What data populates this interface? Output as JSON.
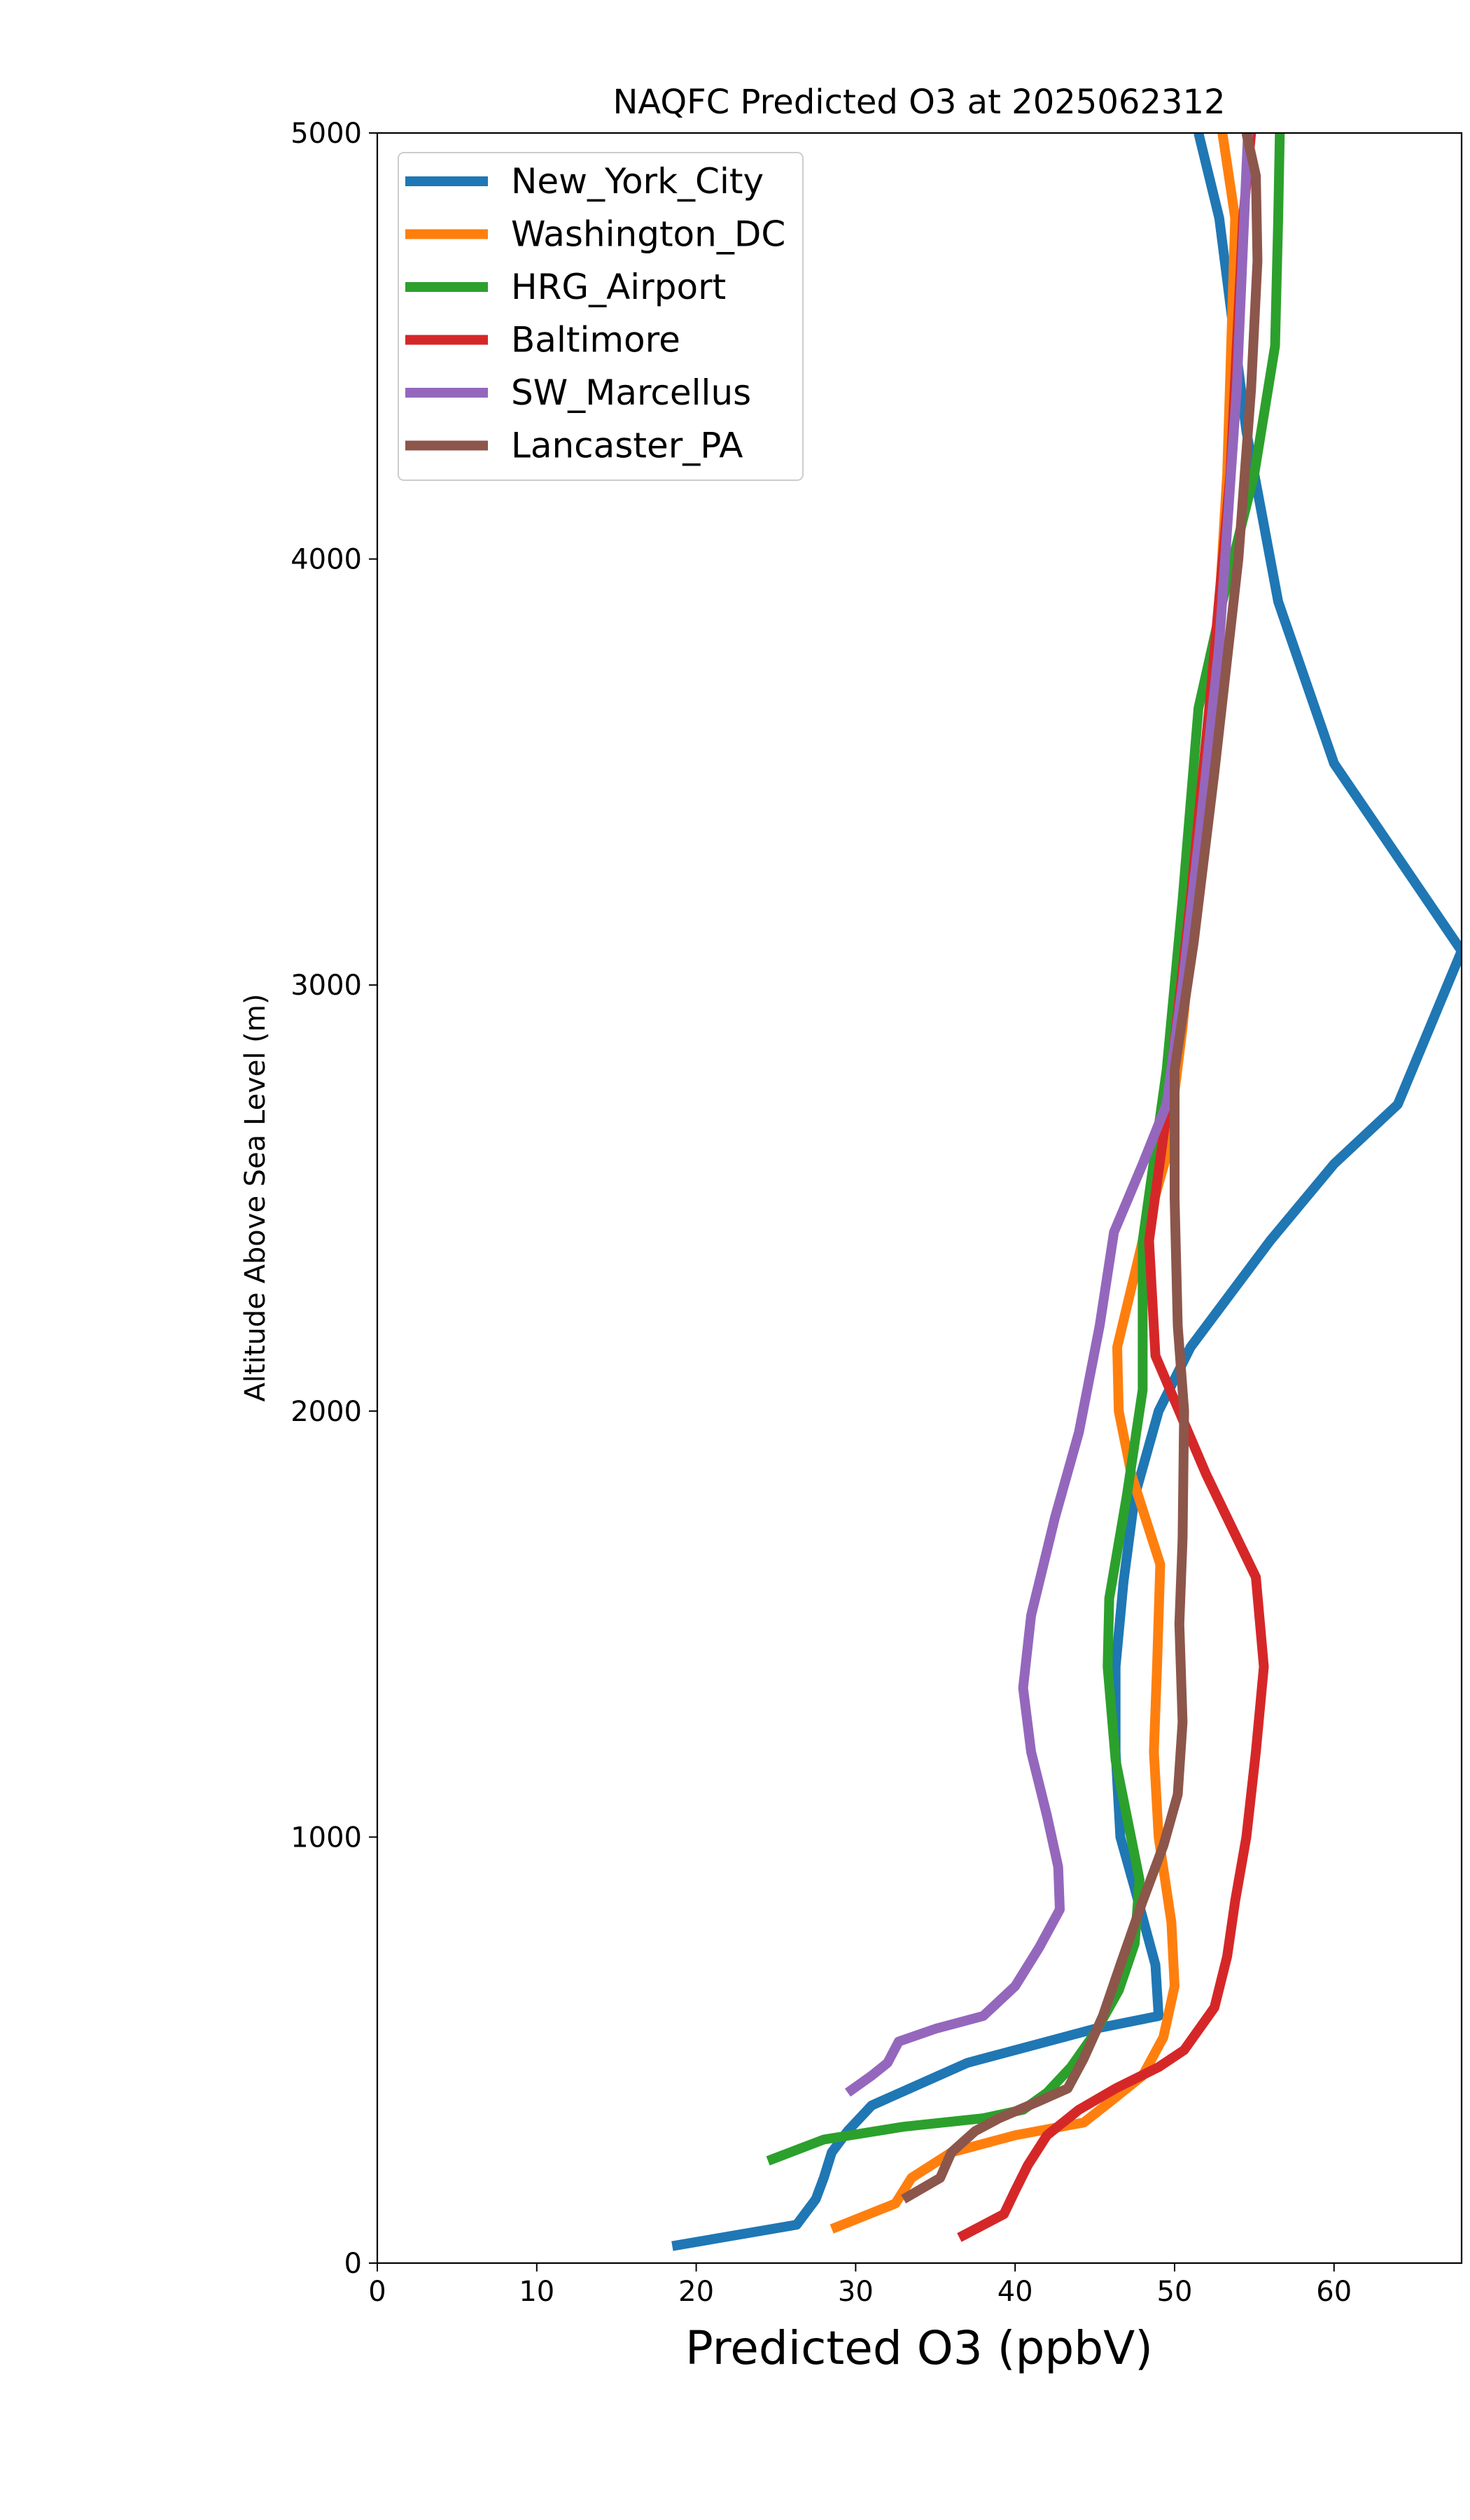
{
  "chart_data": {
    "type": "line",
    "title": "NAQFC Predicted O3 at 2025062312",
    "xlabel": "Predicted O3 (ppbV)",
    "ylabel": "Altitude Above Sea Level (m)",
    "xlim": [
      0,
      68
    ],
    "ylim": [
      0,
      5000
    ],
    "xticks": [
      0,
      10,
      20,
      30,
      40,
      50,
      60
    ],
    "yticks": [
      0,
      1000,
      2000,
      3000,
      4000,
      5000
    ],
    "grid": false,
    "legend_position": "top-left",
    "series": [
      {
        "name": "New_York_City",
        "color": "#1f77b4",
        "points": [
          [
            18.5,
            40
          ],
          [
            26.3,
            90
          ],
          [
            27.5,
            150
          ],
          [
            28.0,
            200
          ],
          [
            28.5,
            260
          ],
          [
            29.5,
            310
          ],
          [
            31.0,
            370
          ],
          [
            34.0,
            420
          ],
          [
            37.0,
            470
          ],
          [
            41.0,
            510
          ],
          [
            45.0,
            550
          ],
          [
            49.0,
            580
          ],
          [
            48.8,
            700
          ],
          [
            47.5,
            880
          ],
          [
            46.6,
            1000
          ],
          [
            46.3,
            1200
          ],
          [
            46.3,
            1400
          ],
          [
            46.8,
            1600
          ],
          [
            47.5,
            1800
          ],
          [
            49.0,
            2000
          ],
          [
            51.0,
            2150
          ],
          [
            56.0,
            2400
          ],
          [
            60.0,
            2580
          ],
          [
            64.0,
            2720
          ],
          [
            68.0,
            3080
          ],
          [
            64.0,
            3300
          ],
          [
            60.0,
            3520
          ],
          [
            56.5,
            3900
          ],
          [
            54.5,
            4300
          ],
          [
            52.8,
            4800
          ],
          [
            51.5,
            5000
          ]
        ]
      },
      {
        "name": "Washington_DC",
        "color": "#ff7f0e",
        "points": [
          [
            28.5,
            80
          ],
          [
            32.5,
            140
          ],
          [
            33.5,
            200
          ],
          [
            36.0,
            260
          ],
          [
            40.0,
            300
          ],
          [
            44.3,
            330
          ],
          [
            46.0,
            380
          ],
          [
            48.0,
            440
          ],
          [
            49.3,
            530
          ],
          [
            50.0,
            650
          ],
          [
            49.8,
            800
          ],
          [
            49.0,
            1000
          ],
          [
            48.7,
            1200
          ],
          [
            48.9,
            1400
          ],
          [
            49.1,
            1640
          ],
          [
            47.3,
            1850
          ],
          [
            46.5,
            2000
          ],
          [
            46.4,
            2150
          ],
          [
            48.0,
            2400
          ],
          [
            49.5,
            2600
          ],
          [
            50.5,
            2900
          ],
          [
            51.5,
            3300
          ],
          [
            52.5,
            3700
          ],
          [
            53.3,
            4200
          ],
          [
            53.8,
            4800
          ],
          [
            53.0,
            5000
          ]
        ]
      },
      {
        "name": "HRG_Airport",
        "color": "#2ca02c",
        "points": [
          [
            24.5,
            240
          ],
          [
            28.0,
            290
          ],
          [
            33.0,
            320
          ],
          [
            38.0,
            340
          ],
          [
            40.5,
            360
          ],
          [
            42.0,
            400
          ],
          [
            43.5,
            460
          ],
          [
            45.0,
            540
          ],
          [
            46.5,
            640
          ],
          [
            47.5,
            750
          ],
          [
            47.8,
            900
          ],
          [
            46.3,
            1180
          ],
          [
            45.8,
            1400
          ],
          [
            45.9,
            1560
          ],
          [
            47.0,
            1800
          ],
          [
            48.0,
            2050
          ],
          [
            48.0,
            2400
          ],
          [
            49.5,
            2800
          ],
          [
            50.5,
            3200
          ],
          [
            51.5,
            3650
          ],
          [
            53.0,
            3900
          ],
          [
            55.0,
            4200
          ],
          [
            56.3,
            4500
          ],
          [
            56.5,
            4800
          ],
          [
            56.6,
            5000
          ]
        ]
      },
      {
        "name": "Baltimore",
        "color": "#d62728",
        "points": [
          [
            36.5,
            60
          ],
          [
            39.3,
            115
          ],
          [
            40.0,
            170
          ],
          [
            40.8,
            230
          ],
          [
            42.0,
            300
          ],
          [
            44.0,
            360
          ],
          [
            46.3,
            410
          ],
          [
            49.0,
            460
          ],
          [
            50.6,
            500
          ],
          [
            52.5,
            600
          ],
          [
            53.3,
            720
          ],
          [
            53.8,
            850
          ],
          [
            54.5,
            1000
          ],
          [
            55.1,
            1200
          ],
          [
            55.6,
            1400
          ],
          [
            55.1,
            1610
          ],
          [
            52.0,
            1850
          ],
          [
            48.8,
            2130
          ],
          [
            48.4,
            2400
          ],
          [
            49.5,
            2700
          ],
          [
            51.0,
            3200
          ],
          [
            52.3,
            3700
          ],
          [
            53.5,
            4200
          ],
          [
            54.3,
            4800
          ],
          [
            54.8,
            5000
          ]
        ]
      },
      {
        "name": "SW_Marcellus",
        "color": "#9467bd",
        "points": [
          [
            29.5,
            400
          ],
          [
            31.0,
            440
          ],
          [
            32.0,
            470
          ],
          [
            32.7,
            520
          ],
          [
            35.0,
            550
          ],
          [
            38.0,
            580
          ],
          [
            40.0,
            650
          ],
          [
            41.5,
            740
          ],
          [
            42.8,
            830
          ],
          [
            42.7,
            930
          ],
          [
            42.0,
            1050
          ],
          [
            41.0,
            1200
          ],
          [
            40.5,
            1350
          ],
          [
            41.0,
            1520
          ],
          [
            42.5,
            1750
          ],
          [
            44.0,
            1950
          ],
          [
            45.3,
            2200
          ],
          [
            46.2,
            2420
          ],
          [
            48.0,
            2580
          ],
          [
            49.5,
            2720
          ],
          [
            50.5,
            3000
          ],
          [
            51.7,
            3400
          ],
          [
            52.8,
            3800
          ],
          [
            53.9,
            4400
          ],
          [
            54.6,
            5000
          ]
        ]
      },
      {
        "name": "Lancaster_PA",
        "color": "#8c564b",
        "points": [
          [
            33.0,
            150
          ],
          [
            35.3,
            200
          ],
          [
            36.0,
            260
          ],
          [
            37.5,
            310
          ],
          [
            39.0,
            340
          ],
          [
            41.5,
            380
          ],
          [
            43.3,
            410
          ],
          [
            44.3,
            480
          ],
          [
            45.5,
            580
          ],
          [
            46.6,
            700
          ],
          [
            48.0,
            850
          ],
          [
            49.3,
            980
          ],
          [
            50.2,
            1100
          ],
          [
            50.5,
            1270
          ],
          [
            50.3,
            1500
          ],
          [
            50.5,
            1700
          ],
          [
            50.6,
            2000
          ],
          [
            50.2,
            2200
          ],
          [
            50.0,
            2500
          ],
          [
            50.0,
            2800
          ],
          [
            51.2,
            3100
          ],
          [
            52.5,
            3500
          ],
          [
            54.0,
            4000
          ],
          [
            54.8,
            4400
          ],
          [
            55.2,
            4700
          ],
          [
            55.1,
            4900
          ],
          [
            54.5,
            5000
          ]
        ]
      }
    ]
  }
}
